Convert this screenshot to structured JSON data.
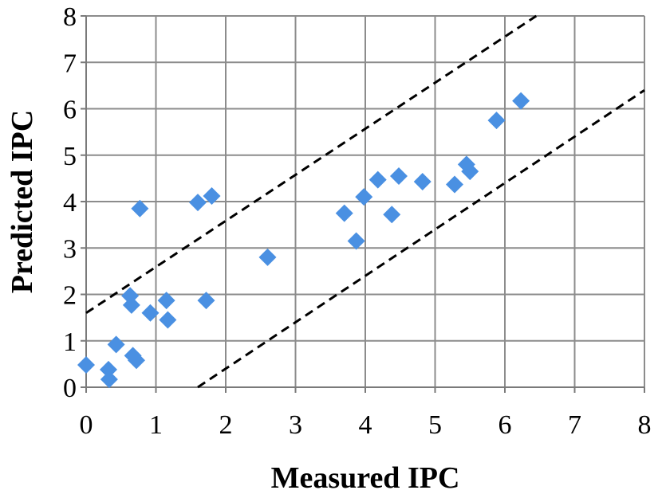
{
  "chart_data": {
    "type": "scatter",
    "title": "",
    "xlabel": "Measured IPC",
    "ylabel": "Predicted IPC",
    "xlim": [
      0,
      8
    ],
    "ylim": [
      0,
      8
    ],
    "xticks": [
      "0",
      "1",
      "2",
      "3",
      "4",
      "5",
      "6",
      "7",
      "8"
    ],
    "yticks": [
      "0",
      "1",
      "2",
      "3",
      "4",
      "5",
      "6",
      "7",
      "8"
    ],
    "grid": true,
    "marker": "diamond",
    "marker_color": "#4a90e2",
    "series": [
      {
        "name": "IPC",
        "points": [
          {
            "x": 0.0,
            "y": 0.48
          },
          {
            "x": 0.32,
            "y": 0.38
          },
          {
            "x": 0.33,
            "y": 0.17
          },
          {
            "x": 0.43,
            "y": 0.92
          },
          {
            "x": 0.63,
            "y": 1.97
          },
          {
            "x": 0.65,
            "y": 1.77
          },
          {
            "x": 0.67,
            "y": 0.68
          },
          {
            "x": 0.72,
            "y": 0.58
          },
          {
            "x": 0.77,
            "y": 3.85
          },
          {
            "x": 0.92,
            "y": 1.6
          },
          {
            "x": 1.15,
            "y": 1.87
          },
          {
            "x": 1.17,
            "y": 1.45
          },
          {
            "x": 1.6,
            "y": 3.98
          },
          {
            "x": 1.72,
            "y": 1.87
          },
          {
            "x": 1.8,
            "y": 4.12
          },
          {
            "x": 2.6,
            "y": 2.8
          },
          {
            "x": 3.7,
            "y": 3.75
          },
          {
            "x": 3.87,
            "y": 3.15
          },
          {
            "x": 3.98,
            "y": 4.1
          },
          {
            "x": 4.18,
            "y": 4.47
          },
          {
            "x": 4.38,
            "y": 3.72
          },
          {
            "x": 4.48,
            "y": 4.55
          },
          {
            "x": 4.82,
            "y": 4.43
          },
          {
            "x": 5.28,
            "y": 4.37
          },
          {
            "x": 5.45,
            "y": 4.8
          },
          {
            "x": 5.5,
            "y": 4.65
          },
          {
            "x": 5.88,
            "y": 5.75
          },
          {
            "x": 6.23,
            "y": 6.17
          }
        ]
      }
    ],
    "reference_lines": [
      {
        "name": "upper-bound",
        "style": "dashed",
        "x1": 0,
        "y1": 1.6,
        "x2": 6.45,
        "y2": 8
      },
      {
        "name": "lower-bound",
        "style": "dashed",
        "x1": 1.6,
        "y1": 0,
        "x2": 8,
        "y2": 6.4
      }
    ]
  }
}
